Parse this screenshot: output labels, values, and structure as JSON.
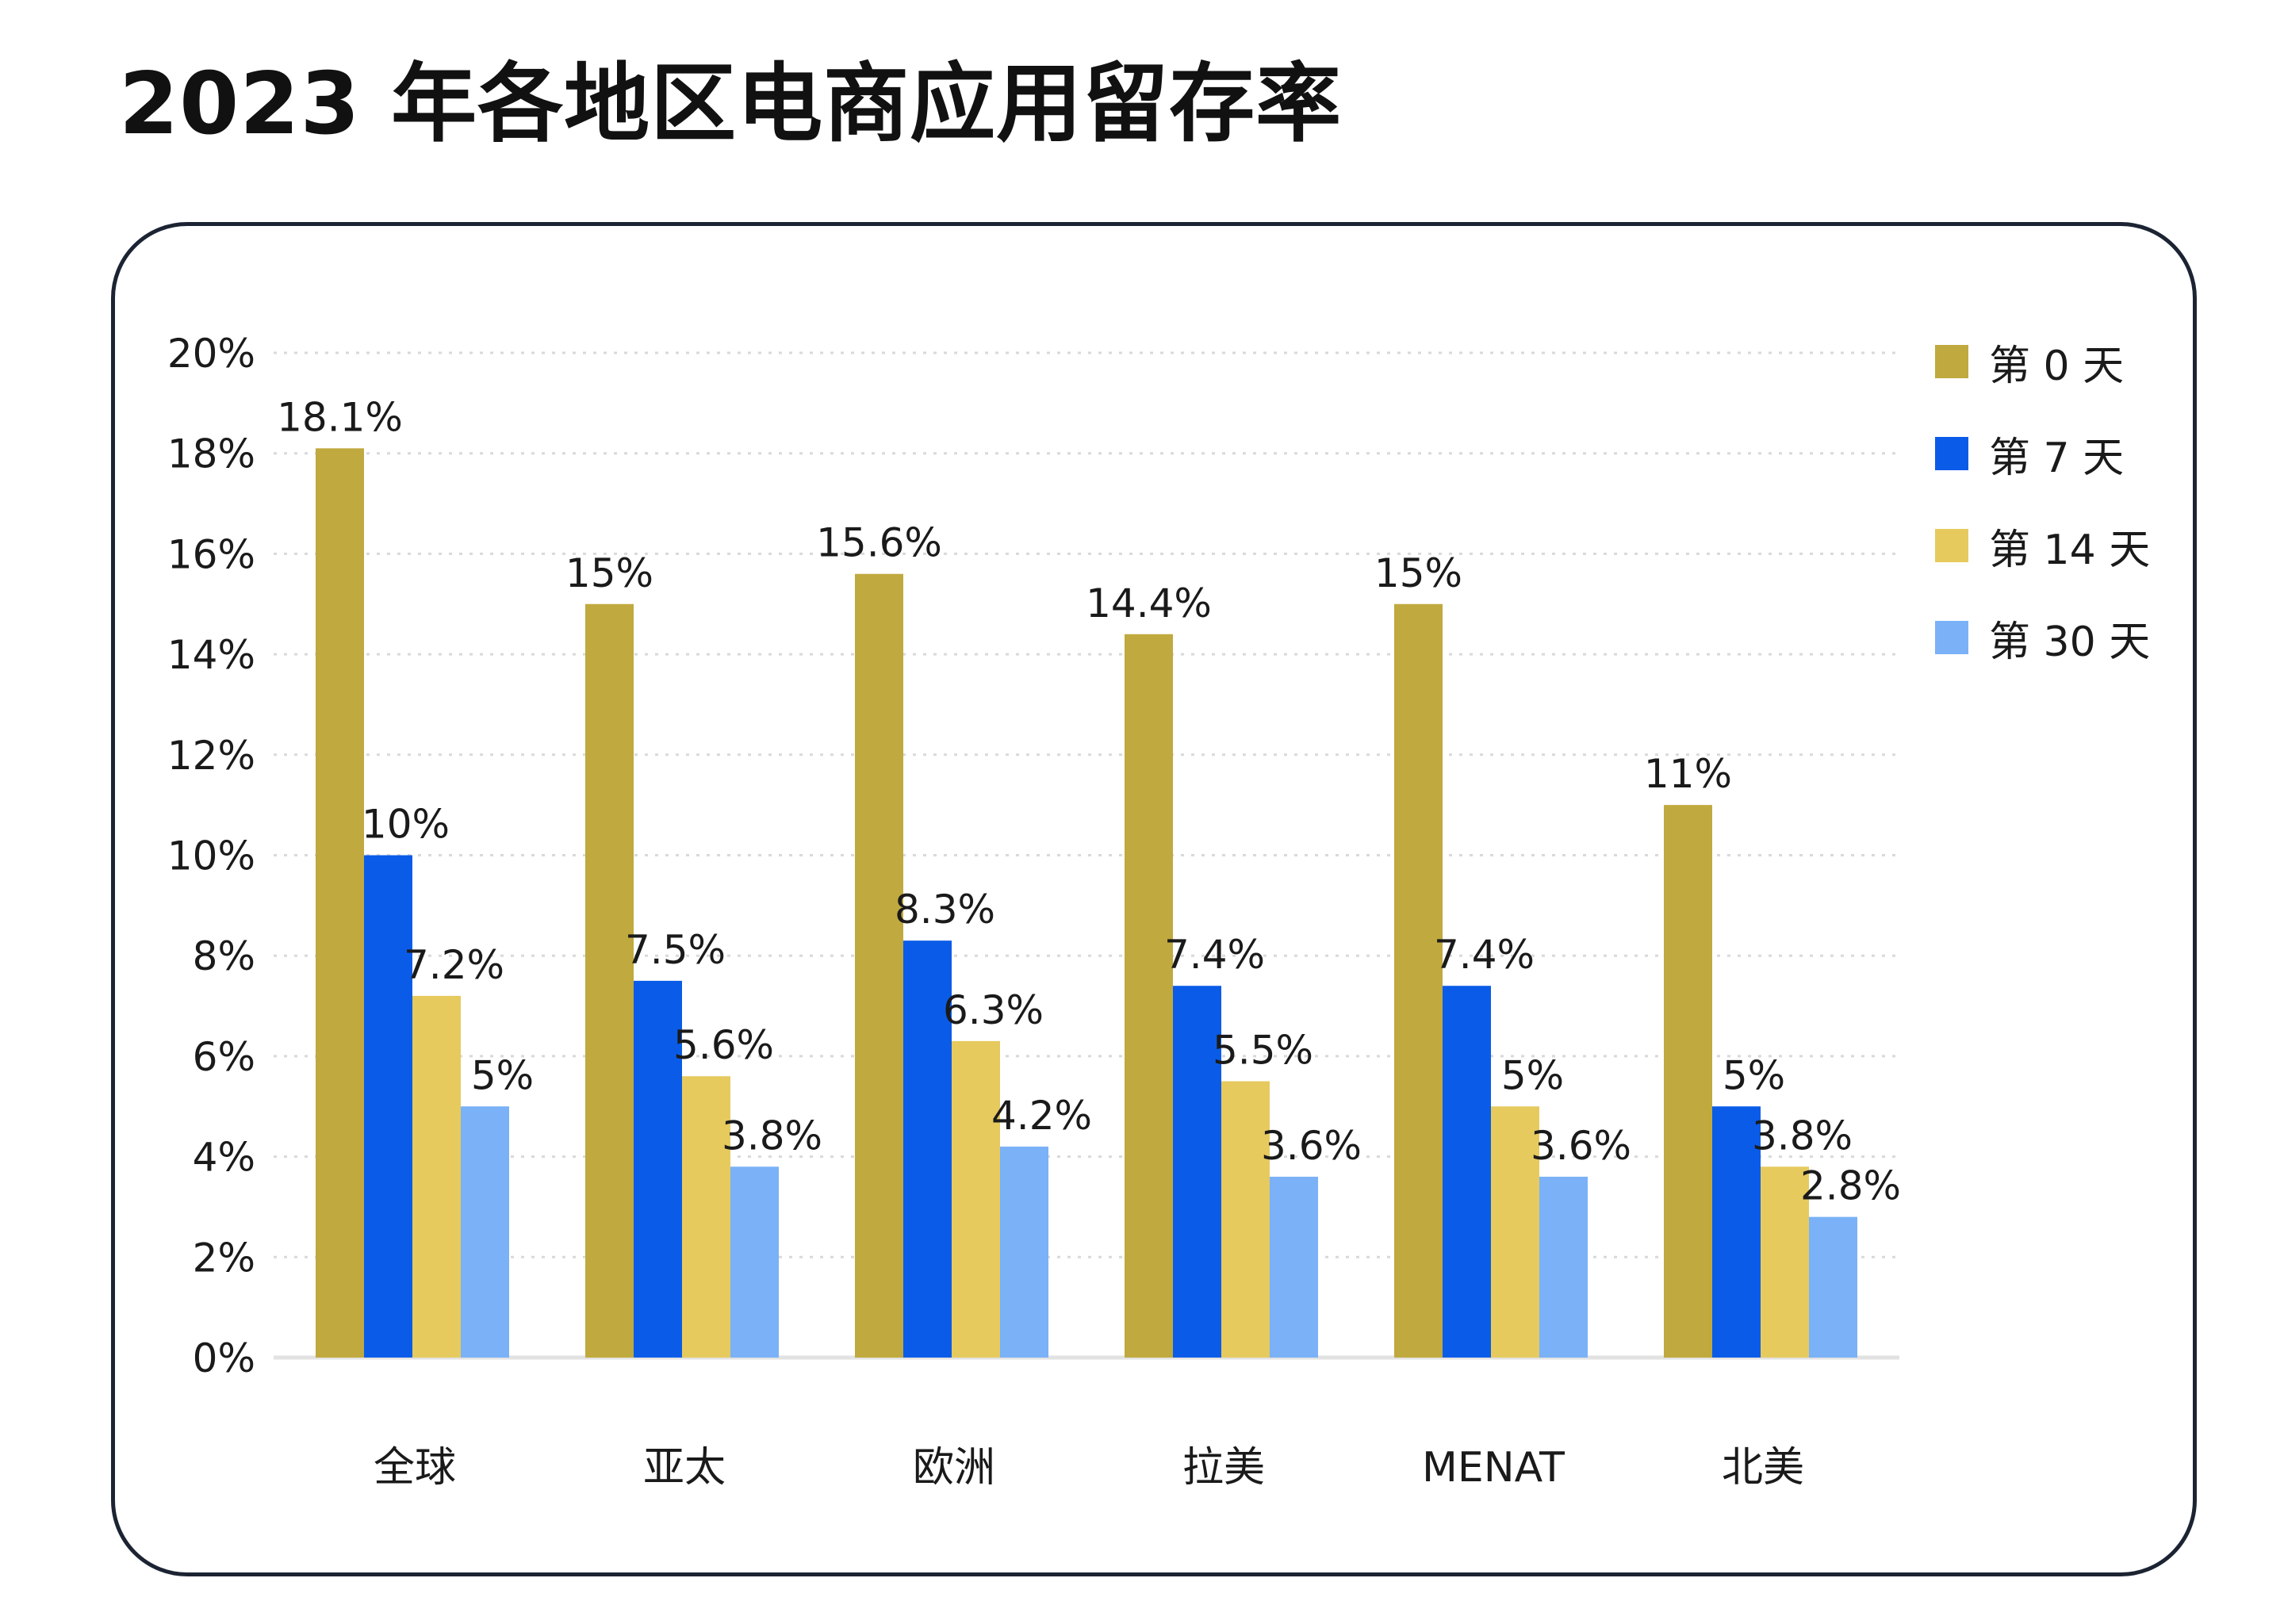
{
  "title": "2023 年各地区电商应用留存率",
  "colors": {
    "day0": "#c0a93e",
    "day7": "#0a5ce8",
    "day14": "#e6ca5e",
    "day30": "#7ab1f7",
    "grid": "#d9d9d9",
    "axis": "#e2e2e2"
  },
  "legend": [
    {
      "label": "第 0 天",
      "color": "#c0a93e"
    },
    {
      "label": "第 7 天",
      "color": "#0a5ce8"
    },
    {
      "label": "第 14 天",
      "color": "#e6ca5e"
    },
    {
      "label": "第 30 天",
      "color": "#7ab1f7"
    }
  ],
  "chart_data": {
    "type": "bar",
    "title": "2023 年各地区电商应用留存率",
    "xlabel": "",
    "ylabel": "",
    "ylim": [
      0,
      20
    ],
    "yticks": [
      0,
      2,
      4,
      6,
      8,
      10,
      12,
      14,
      16,
      18,
      20
    ],
    "ytick_labels": [
      "0%",
      "2%",
      "4%",
      "6%",
      "8%",
      "10%",
      "12%",
      "14%",
      "16%",
      "18%",
      "20%"
    ],
    "grid": true,
    "legend_position": "right",
    "categories": [
      "全球",
      "亚太",
      "欧洲",
      "拉美",
      "MENAT",
      "北美"
    ],
    "series": [
      {
        "name": "第 0 天",
        "color": "#c0a93e",
        "values": [
          18.1,
          15,
          15.6,
          14.4,
          15,
          11
        ],
        "labels": [
          "18.1%",
          "15%",
          "15.6%",
          "14.4%",
          "15%",
          "11%"
        ]
      },
      {
        "name": "第 7 天",
        "color": "#0a5ce8",
        "values": [
          10,
          7.5,
          8.3,
          7.4,
          7.4,
          5
        ],
        "labels": [
          "10%",
          "7.5%",
          "8.3%",
          "7.4%",
          "7.4%",
          "5%"
        ]
      },
      {
        "name": "第 14 天",
        "color": "#e6ca5e",
        "values": [
          7.2,
          5.6,
          6.3,
          5.5,
          5,
          3.8
        ],
        "labels": [
          "7.2%",
          "5.6%",
          "6.3%",
          "5.5%",
          "5%",
          "3.8%"
        ]
      },
      {
        "name": "第 30 天",
        "color": "#7ab1f7",
        "values": [
          5,
          3.8,
          4.2,
          3.6,
          3.6,
          2.8
        ],
        "labels": [
          "5%",
          "3.8%",
          "4.2%",
          "3.6%",
          "3.6%",
          "2.8%"
        ]
      }
    ]
  }
}
